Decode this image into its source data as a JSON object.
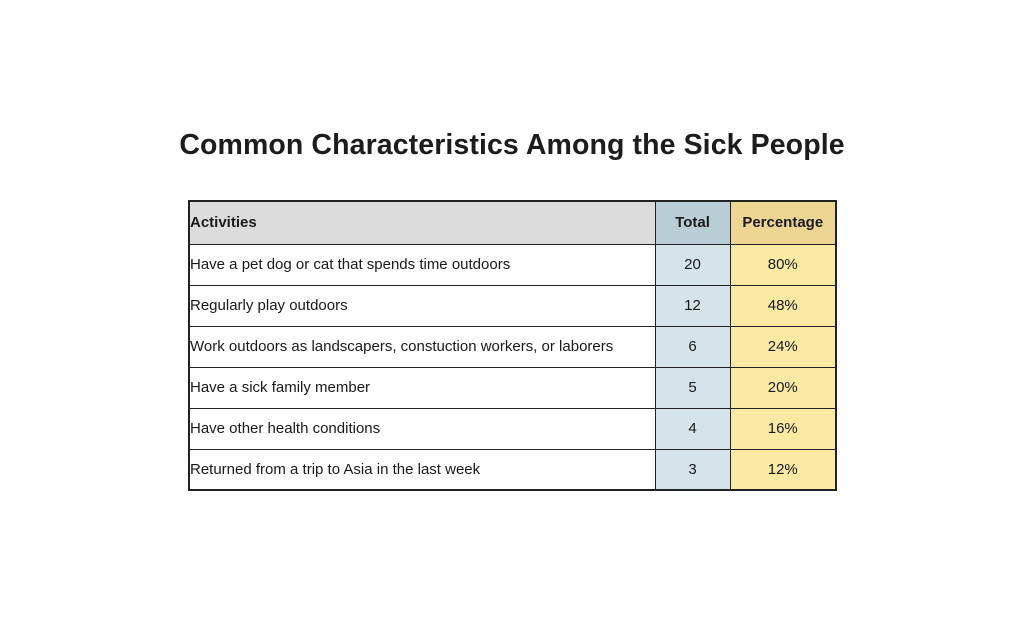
{
  "chart_data": {
    "type": "table",
    "title": "Common Characteristics Among the Sick People",
    "columns": [
      "Activities",
      "Total",
      "Percentage"
    ],
    "rows": [
      {
        "activity": "Have a pet dog or cat that spends time outdoors",
        "total": "20",
        "percentage": "80%"
      },
      {
        "activity": "Regularly play outdoors",
        "total": "12",
        "percentage": "48%"
      },
      {
        "activity": "Work outdoors as landscapers, constuction workers, or laborers",
        "total": "6",
        "percentage": "24%"
      },
      {
        "activity": "Have a sick family member",
        "total": "5",
        "percentage": "20%"
      },
      {
        "activity": "Have other health conditions",
        "total": "4",
        "percentage": "16%"
      },
      {
        "activity": "Returned from a trip to Asia in the last week",
        "total": "3",
        "percentage": "12%"
      }
    ]
  },
  "colors": {
    "header_activities_bg": "#dcdcdc",
    "header_total_bg": "#b8cdd6",
    "header_percentage_bg": "#ecd691",
    "total_cell_bg": "#d5e4ea",
    "percentage_cell_bg": "#fbe9a4",
    "border": "#222222"
  }
}
